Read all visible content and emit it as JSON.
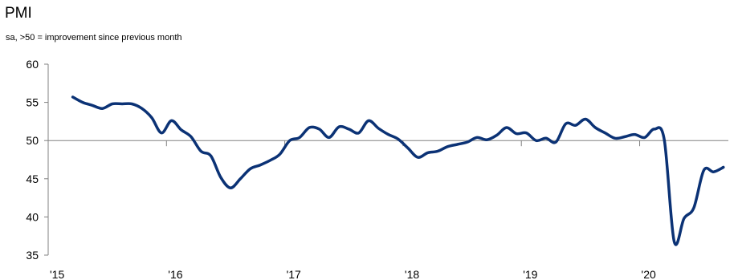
{
  "chart_data": {
    "type": "line",
    "title": "PMI",
    "subtitle": "sa, >50 = improvement since previous month",
    "xlabel": "",
    "ylabel": "",
    "ylim": [
      35,
      60
    ],
    "yticks": [
      35,
      40,
      45,
      50,
      55,
      60
    ],
    "xlim": [
      2015.0,
      2020.75
    ],
    "xtick_positions": [
      2015,
      2016,
      2017,
      2018,
      2019,
      2020
    ],
    "xtick_labels": [
      "'15",
      "'16",
      "'17",
      "'18",
      "'19",
      "'20"
    ],
    "reference_line": 50,
    "grid": false,
    "legend": "none",
    "series": [
      {
        "color": "#0b3275",
        "x": [
          2015.208,
          2015.292,
          2015.375,
          2015.458,
          2015.542,
          2015.625,
          2015.708,
          2015.792,
          2015.875,
          2015.958,
          2016.042,
          2016.125,
          2016.208,
          2016.292,
          2016.375,
          2016.458,
          2016.542,
          2016.625,
          2016.708,
          2016.792,
          2016.875,
          2016.958,
          2017.042,
          2017.125,
          2017.208,
          2017.292,
          2017.375,
          2017.458,
          2017.542,
          2017.625,
          2017.708,
          2017.792,
          2017.875,
          2017.958,
          2018.042,
          2018.125,
          2018.208,
          2018.292,
          2018.375,
          2018.458,
          2018.542,
          2018.625,
          2018.708,
          2018.792,
          2018.875,
          2018.958,
          2019.042,
          2019.125,
          2019.208,
          2019.292,
          2019.375,
          2019.458,
          2019.542,
          2019.625,
          2019.708,
          2019.792,
          2019.875,
          2019.958,
          2020.042,
          2020.125,
          2020.208,
          2020.292,
          2020.375,
          2020.458,
          2020.542,
          2020.625,
          2020.708
        ],
        "y": [
          55.7,
          55.0,
          54.6,
          54.2,
          54.8,
          54.8,
          54.8,
          54.2,
          53.0,
          51.0,
          52.6,
          51.4,
          50.5,
          48.6,
          48.0,
          45.2,
          43.8,
          45.0,
          46.3,
          46.8,
          47.4,
          48.2,
          50.0,
          50.4,
          51.7,
          51.5,
          50.4,
          51.8,
          51.5,
          51.0,
          52.6,
          51.6,
          50.8,
          50.2,
          49.0,
          47.8,
          48.4,
          48.6,
          49.2,
          49.5,
          49.8,
          50.4,
          50.1,
          50.7,
          51.7,
          50.9,
          51.0,
          50.0,
          50.3,
          49.8,
          52.2,
          52.0,
          52.8,
          51.7,
          51.0,
          50.3,
          50.5,
          50.8,
          50.4,
          51.5,
          50.1,
          36.8,
          39.8,
          41.2,
          46.1,
          45.9,
          46.5
        ]
      }
    ]
  }
}
